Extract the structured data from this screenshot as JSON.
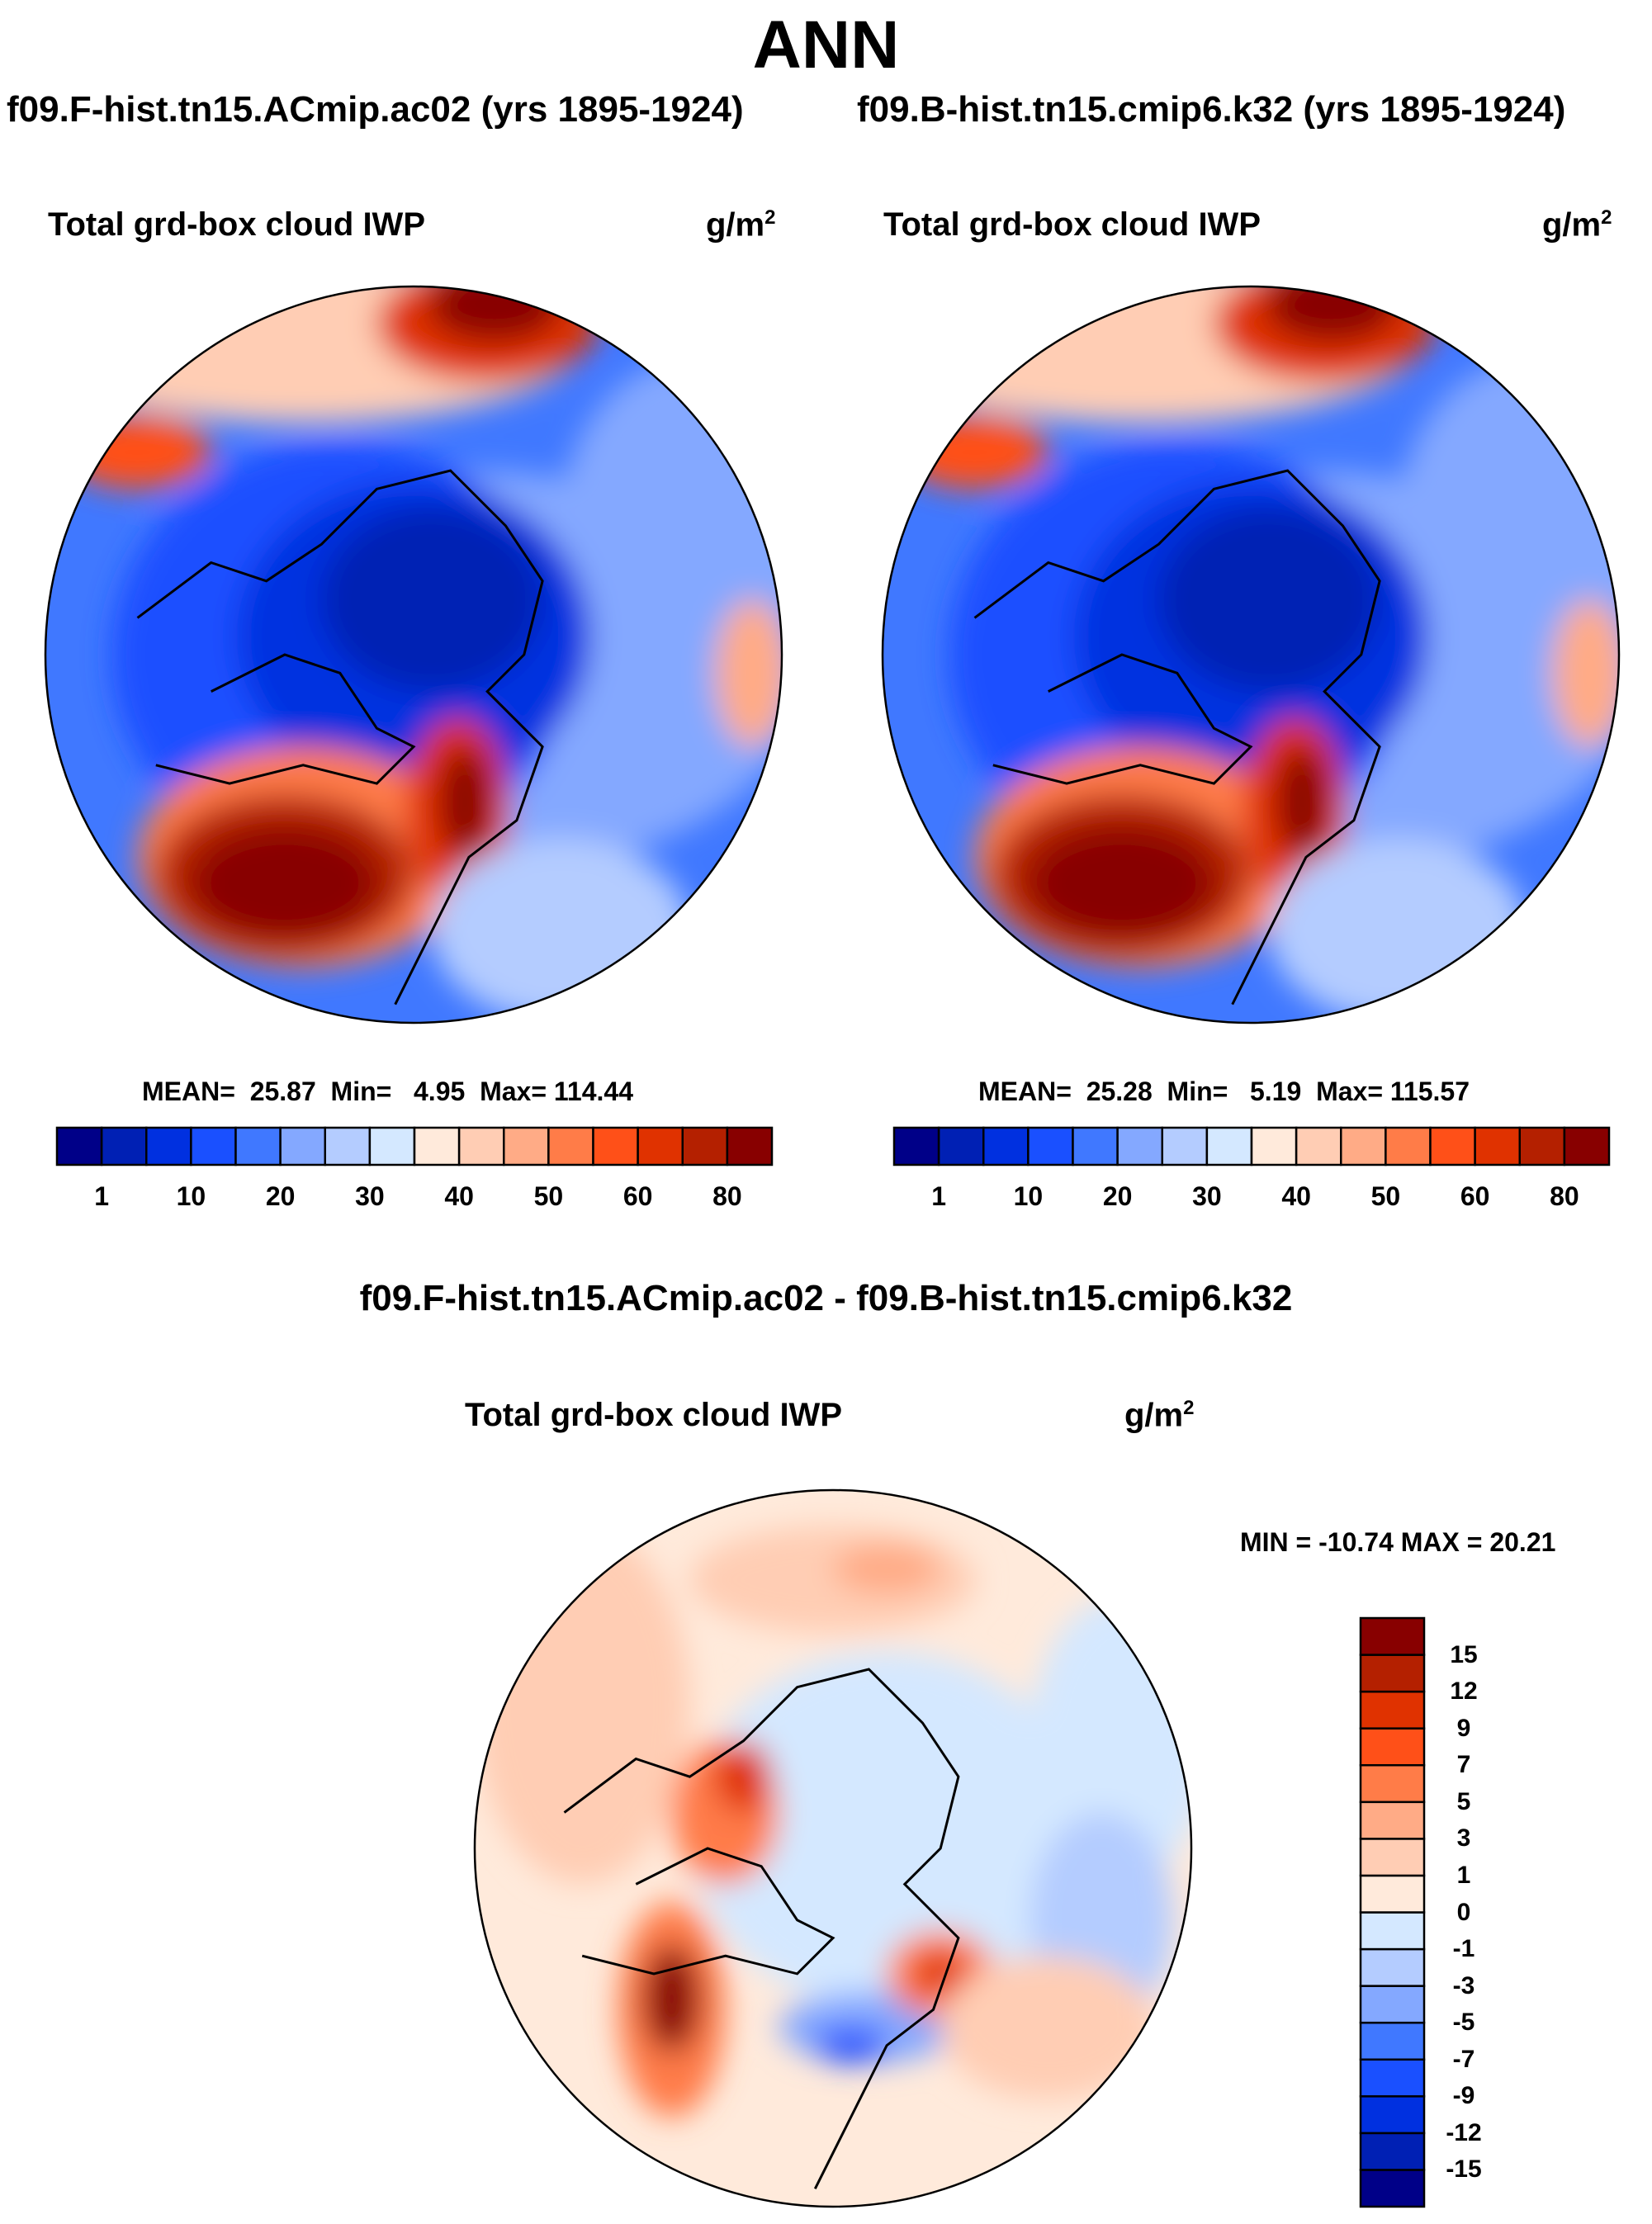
{
  "chart_data": [
    {
      "type": "heatmap",
      "title": "ANN",
      "subtitle": "f09.F-hist.tn15.ACmip.ac02 (yrs 1895-1924)",
      "panel_title": "Total grd-box cloud IWP",
      "units": "g/m",
      "units_exp": "2",
      "stats": {
        "mean_label": "MEAN=",
        "mean": "25.87",
        "min_label": "Min=",
        "min": "4.95",
        "max_label": "Max=",
        "max": "114.44"
      },
      "colorbar": {
        "colors": [
          "#000088",
          "#0020b4",
          "#0030e0",
          "#1a50ff",
          "#4078ff",
          "#84a8ff",
          "#b4ccff",
          "#d4e8ff",
          "#ffeadb",
          "#ffcdb4",
          "#ffab86",
          "#ff7c48",
          "#ff5018",
          "#e03200",
          "#b42000",
          "#880000"
        ],
        "tick_labels": [
          "1",
          "10",
          "20",
          "30",
          "40",
          "50",
          "60",
          "80"
        ]
      },
      "projection": "north polar stereographic"
    },
    {
      "type": "heatmap",
      "subtitle": "f09.B-hist.tn15.cmip6.k32 (yrs 1895-1924)",
      "panel_title": "Total grd-box cloud IWP",
      "units": "g/m",
      "units_exp": "2",
      "stats": {
        "mean_label": "MEAN=",
        "mean": "25.28",
        "min_label": "Min=",
        "min": "5.19",
        "max_label": "Max=",
        "max": "115.57"
      },
      "colorbar": {
        "colors": [
          "#000088",
          "#0020b4",
          "#0030e0",
          "#1a50ff",
          "#4078ff",
          "#84a8ff",
          "#b4ccff",
          "#d4e8ff",
          "#ffeadb",
          "#ffcdb4",
          "#ffab86",
          "#ff7c48",
          "#ff5018",
          "#e03200",
          "#b42000",
          "#880000"
        ],
        "tick_labels": [
          "1",
          "10",
          "20",
          "30",
          "40",
          "50",
          "60",
          "80"
        ]
      },
      "projection": "north polar stereographic"
    },
    {
      "type": "heatmap",
      "subtitle": "f09.F-hist.tn15.ACmip.ac02 - f09.B-hist.tn15.cmip6.k32",
      "panel_title": "Total grd-box cloud IWP",
      "units": "g/m",
      "units_exp": "2",
      "stats": {
        "text": "MIN = -10.74 MAX =  20.21",
        "min": -10.74,
        "max": 20.21
      },
      "colorbar": {
        "colors": [
          "#000088",
          "#0020b4",
          "#0030e0",
          "#1a50ff",
          "#4078ff",
          "#84a8ff",
          "#b4ccff",
          "#d4e8ff",
          "#ffeadb",
          "#ffcdb4",
          "#ffab86",
          "#ff7c48",
          "#ff5018",
          "#e03200",
          "#b42000",
          "#880000"
        ],
        "tick_labels": [
          "-15",
          "-12",
          "-9",
          "-7",
          "-5",
          "-3",
          "-1",
          "0",
          "1",
          "3",
          "5",
          "7",
          "9",
          "12",
          "15"
        ]
      },
      "projection": "north polar stereographic"
    }
  ]
}
